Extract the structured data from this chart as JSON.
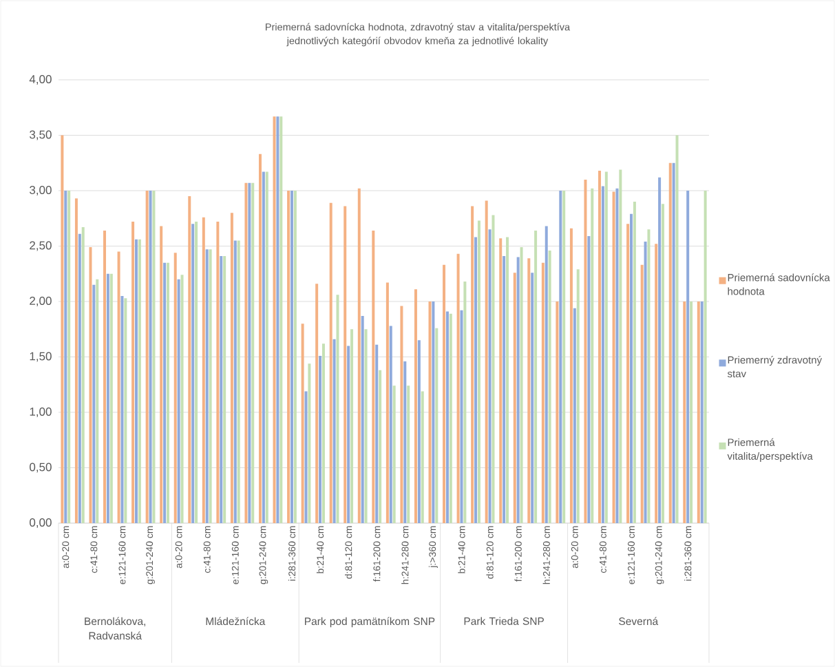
{
  "chart_data": {
    "type": "bar",
    "title": "Priemerná sadovnícka hodnota, zdravotný stav a vitalita/perspektíva jednotlivých kategórií obvodov kmeňa za jednotlivé lokality",
    "categories": [
      "a:0-20 cm",
      null,
      "c:41-80 cm",
      null,
      "e:121-160 cm",
      null,
      "g:201-240 cm",
      null,
      "a:0-20 cm",
      null,
      "c:41-80 cm",
      null,
      "e:121-160 cm",
      null,
      "g:201-240 cm",
      null,
      "i:281-360 cm",
      null,
      "b:21-40 cm",
      null,
      "d:81-120 cm",
      null,
      "f:161-200 cm",
      null,
      "h:241-280 cm",
      null,
      "j:>360 cm",
      null,
      "b:21-40 cm",
      null,
      "d:81-120 cm",
      null,
      "f:161-200 cm",
      null,
      "h:241-280 cm",
      null,
      "a:0-20 cm",
      null,
      "c:41-80 cm",
      null,
      "e:121-160 cm",
      null,
      "g:201-240 cm",
      null,
      "i:281-360 cm",
      null
    ],
    "series": [
      {
        "name": "Priemerná sadovnícka hodnota",
        "color": "#f4b183",
        "values": [
          3.5,
          2.93,
          2.49,
          2.64,
          2.45,
          2.72,
          3.0,
          2.68,
          2.44,
          2.95,
          2.76,
          2.72,
          2.8,
          3.07,
          3.33,
          3.67,
          3.0,
          1.8,
          2.16,
          2.89,
          2.86,
          3.02,
          2.64,
          2.17,
          1.96,
          2.11,
          2.0,
          2.33,
          2.43,
          2.86,
          2.91,
          2.57,
          2.26,
          2.39,
          2.35,
          2.0,
          2.66,
          3.1,
          3.18,
          2.99,
          2.7,
          2.33,
          2.52,
          3.25,
          2.0,
          2.0
        ]
      },
      {
        "name": "Priemerný zdravotný stav",
        "color": "#8faadc",
        "values": [
          3.0,
          2.61,
          2.15,
          2.25,
          2.05,
          2.56,
          3.0,
          2.35,
          2.2,
          2.7,
          2.47,
          2.41,
          2.55,
          3.07,
          3.17,
          3.67,
          3.0,
          1.19,
          1.51,
          1.66,
          1.6,
          1.87,
          1.61,
          1.78,
          1.46,
          1.65,
          2.0,
          1.91,
          1.92,
          2.58,
          2.65,
          2.41,
          2.4,
          2.26,
          2.68,
          3.0,
          1.94,
          2.59,
          3.04,
          3.02,
          2.79,
          2.54,
          3.12,
          3.25,
          3.0,
          2.0
        ]
      },
      {
        "name": "Priemerná vitalita/perspektíva",
        "color": "#c5e0b4",
        "values": [
          3.0,
          2.67,
          2.2,
          2.25,
          2.03,
          2.56,
          3.0,
          2.35,
          2.24,
          2.72,
          2.47,
          2.41,
          2.55,
          3.07,
          3.17,
          3.67,
          3.0,
          1.44,
          1.62,
          2.06,
          1.75,
          1.75,
          1.38,
          1.24,
          1.24,
          1.19,
          1.76,
          1.89,
          2.18,
          2.73,
          2.78,
          2.58,
          2.49,
          2.64,
          2.46,
          3.0,
          2.29,
          3.02,
          3.17,
          3.19,
          2.9,
          2.65,
          2.88,
          3.5,
          2.0,
          3.0
        ]
      }
    ],
    "ylim": [
      0,
      4
    ],
    "yticks": [
      {
        "value": 0,
        "label": "0,00"
      },
      {
        "value": 0.5,
        "label": "0,50"
      },
      {
        "value": 1,
        "label": "1,00"
      },
      {
        "value": 1.5,
        "label": "1,50"
      },
      {
        "value": 2,
        "label": "2,00"
      },
      {
        "value": 2.5,
        "label": "2,50"
      },
      {
        "value": 3,
        "label": "3,00"
      },
      {
        "value": 3.5,
        "label": "3,50"
      },
      {
        "value": 4,
        "label": "4,00"
      }
    ],
    "grid": "y",
    "legend": "right",
    "annotations": [
      "Bernolákova, Radvanská",
      "Mládežnícka",
      "Park pod pamätníkom SNP",
      "Park Trieda SNP",
      "Severná"
    ]
  }
}
